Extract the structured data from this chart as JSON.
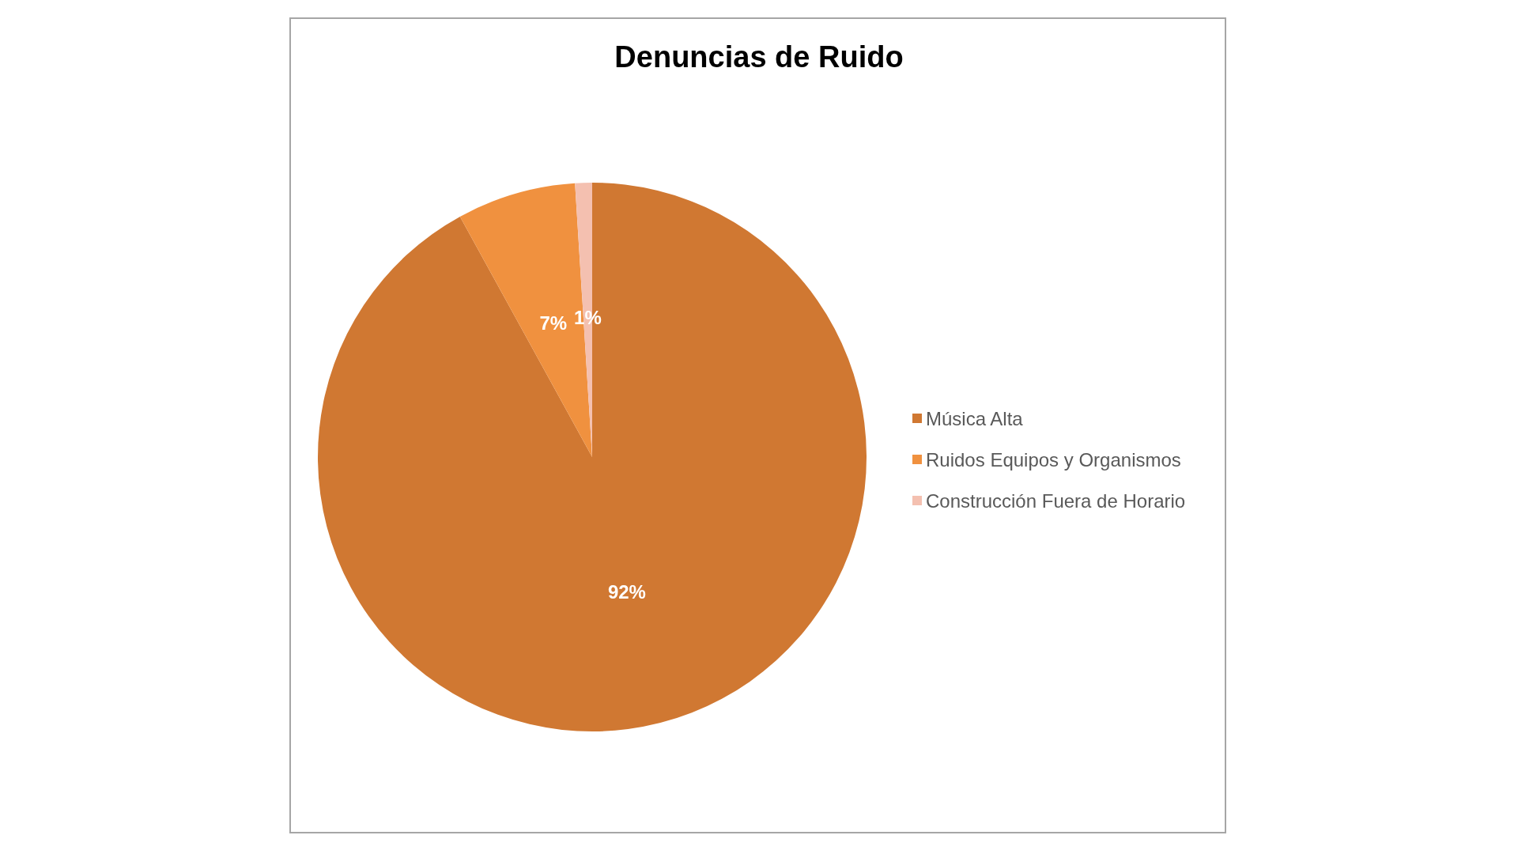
{
  "chart_data": {
    "type": "pie",
    "title": "Denuncias de Ruido",
    "categories": [
      "Música Alta",
      "Ruidos Equipos y Organismos",
      "Construcción Fuera de Horario"
    ],
    "values": [
      92,
      7,
      1
    ],
    "colors": [
      "#d07832",
      "#f0913f",
      "#f4c0b0"
    ],
    "value_labels": [
      "92%",
      "7%",
      "1%"
    ],
    "legend": "right"
  }
}
